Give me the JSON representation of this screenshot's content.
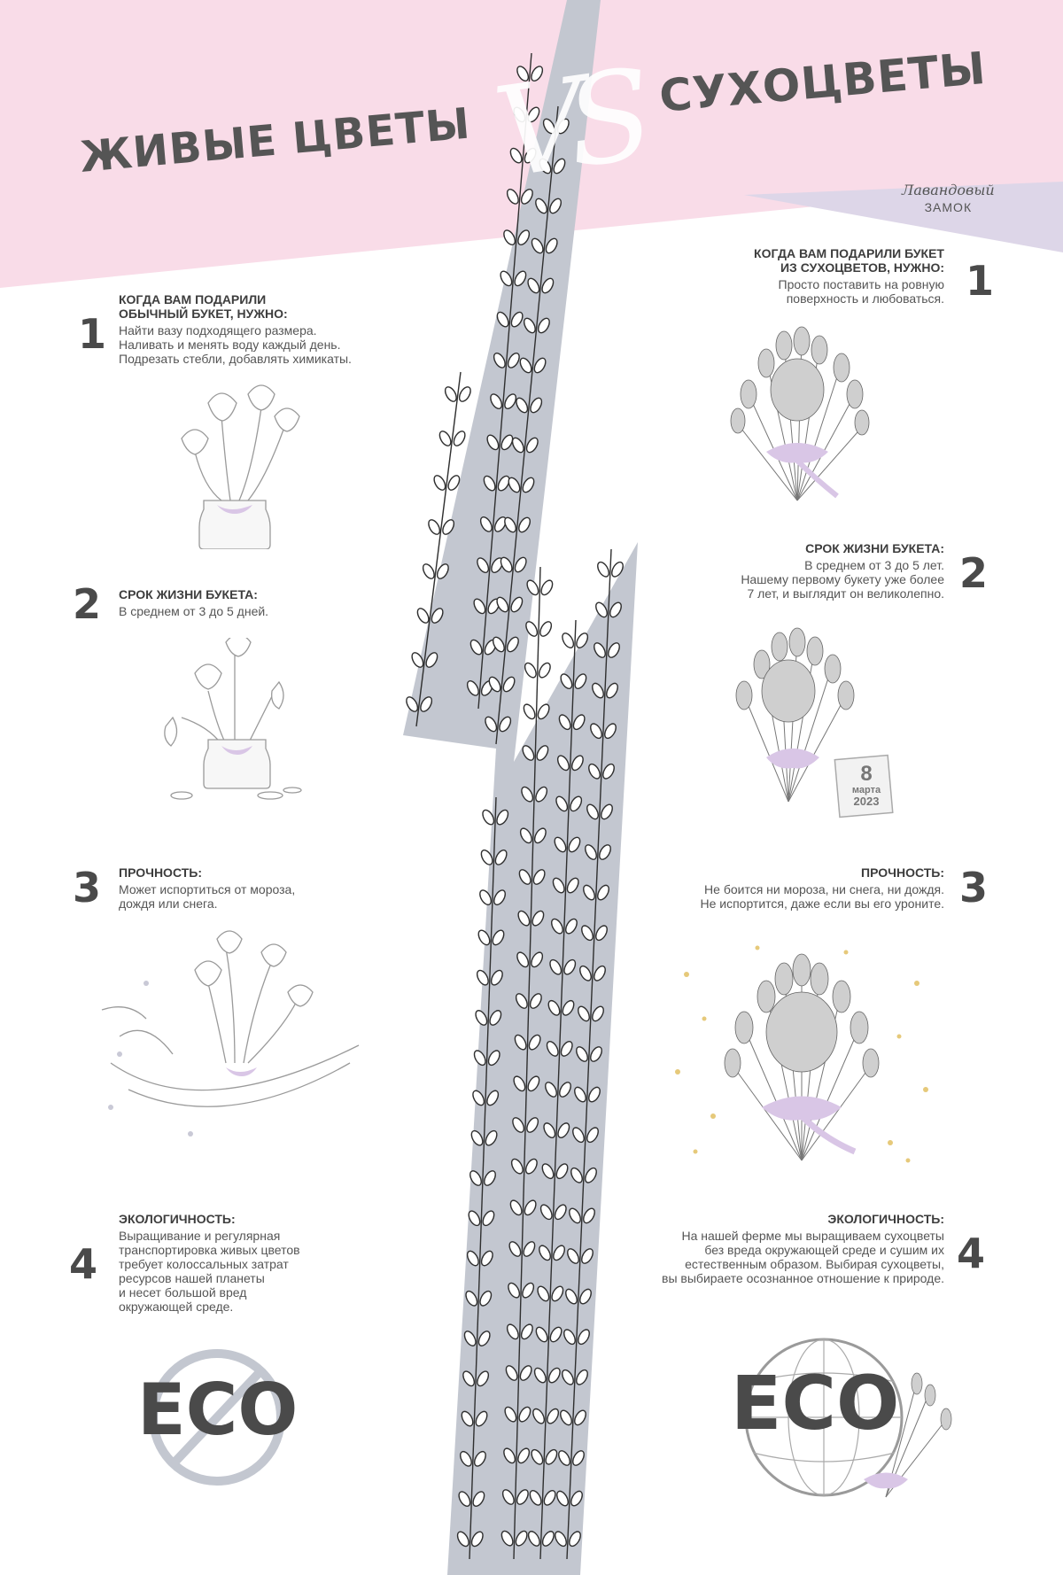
{
  "colors": {
    "pink": "#f9dce8",
    "lavender": "#ddd6e8",
    "bolt": "#c3c7d0",
    "text": "#444444",
    "ribbon": "#d9c6e6",
    "sparkle": "#e6c97a"
  },
  "header": {
    "title_left": "ЖИВЫЕ ЦВЕТЫ",
    "vs": "VS",
    "title_right": "СУХОЦВЕТЫ",
    "brand_script": "Лавандовый",
    "brand_caps": "ЗАМОК"
  },
  "left": {
    "items": [
      {
        "num": "1",
        "heading": [
          "КОГДА ВАМ ПОДАРИЛИ",
          "ОБЫЧНЫЙ БУКЕТ, НУЖНО:"
        ],
        "lines": [
          "Найти вазу подходящего размера.",
          "Наливать и менять воду каждый день.",
          "Подрезать стебли, добавлять химикаты."
        ]
      },
      {
        "num": "2",
        "heading": [
          "СРОК ЖИЗНИ БУКЕТА:"
        ],
        "lines": [
          "В среднем от 3 до 5 дней."
        ]
      },
      {
        "num": "3",
        "heading": [
          "ПРОЧНОСТЬ:"
        ],
        "lines": [
          "Может испортиться от мороза,",
          "дождя или снега."
        ]
      },
      {
        "num": "4",
        "heading": [
          "ЭКОЛОГИЧНОСТЬ:"
        ],
        "lines": [
          "Выращивание и регулярная",
          "транспортировка живых цветов",
          "требует колоссальных затрат",
          "ресурсов нашей планеты",
          "и несет большой вред",
          "окружающей среде."
        ]
      }
    ],
    "eco_label": "ECO",
    "illustration_icons": [
      "tulip-vase-icon",
      "wilted-tulip-vase-icon",
      "tulip-bouquet-wind-icon",
      "no-eco-icon"
    ]
  },
  "right": {
    "items": [
      {
        "num": "1",
        "heading": [
          "КОГДА ВАМ ПОДАРИЛИ БУКЕТ",
          "ИЗ СУХОЦВЕТОВ, НУЖНО:"
        ],
        "lines": [
          "Просто поставить на ровную",
          "поверхность и любоваться."
        ]
      },
      {
        "num": "2",
        "heading": [
          "СРОК ЖИЗНИ БУКЕТА:"
        ],
        "lines": [
          "В среднем от 3 до 5 лет.",
          "Нашему первому букету уже более",
          "7 лет, и выглядит он великолепно."
        ]
      },
      {
        "num": "3",
        "heading": [
          "ПРОЧНОСТЬ:"
        ],
        "lines": [
          "Не боится ни мороза, ни снега, ни дождя.",
          "Не испортится, даже если вы его уроните."
        ]
      },
      {
        "num": "4",
        "heading": [
          "ЭКОЛОГИЧНОСТЬ:"
        ],
        "lines": [
          "На нашей ферме мы выращиваем сухоцветы",
          "без вреда окружающей среде и сушим их",
          "естественным образом. Выбирая сухоцветы,",
          "вы выбираете осознанное отношение к природе."
        ]
      }
    ],
    "calendar": {
      "day": "8",
      "month": "марта",
      "year": "2023"
    },
    "eco_label": "ECO",
    "illustration_icons": [
      "lavender-bouquet-icon",
      "lavender-bouquet-calendar-icon",
      "lavender-bouquet-sparkles-icon",
      "eco-globe-icon"
    ]
  }
}
